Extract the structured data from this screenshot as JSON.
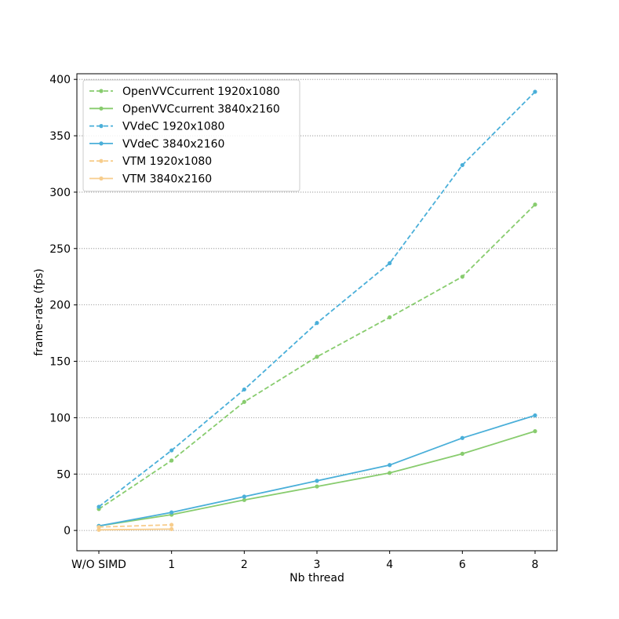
{
  "chart_data": {
    "type": "line",
    "title": "",
    "xlabel": "Nb thread",
    "ylabel": "frame-rate (fps)",
    "categories": [
      "W/O SIMD",
      "1",
      "2",
      "3",
      "4",
      "6",
      "8"
    ],
    "ylim": [
      -18,
      405
    ],
    "yticks": [
      0,
      50,
      100,
      150,
      200,
      250,
      300,
      350,
      400
    ],
    "grid": "horizontal dotted",
    "legend_position": "top-left",
    "series": [
      {
        "name": "OpenVVCcurrent 1920x1080",
        "color": "#88cc6e",
        "dash": true,
        "values": [
          19,
          62,
          114,
          154,
          189,
          225,
          289
        ]
      },
      {
        "name": "OpenVVCcurrent 3840x2160",
        "color": "#88cc6e",
        "dash": false,
        "values": [
          4,
          14,
          27,
          39,
          51,
          68,
          88
        ]
      },
      {
        "name": "VVdeC 1920x1080",
        "color": "#4aafd9",
        "dash": true,
        "values": [
          21,
          71,
          125,
          184,
          237,
          324,
          389
        ]
      },
      {
        "name": "VVdeC 3840x2160",
        "color": "#4aafd9",
        "dash": false,
        "values": [
          4,
          16,
          30,
          44,
          58,
          82,
          102
        ]
      },
      {
        "name": "VTM 1920x1080",
        "color": "#f7cd8c",
        "dash": true,
        "values": [
          3,
          5,
          null,
          null,
          null,
          null,
          null
        ]
      },
      {
        "name": "VTM 3840x2160",
        "color": "#f7cd8c",
        "dash": false,
        "values": [
          0.6,
          1.2,
          null,
          null,
          null,
          null,
          null
        ]
      }
    ]
  }
}
